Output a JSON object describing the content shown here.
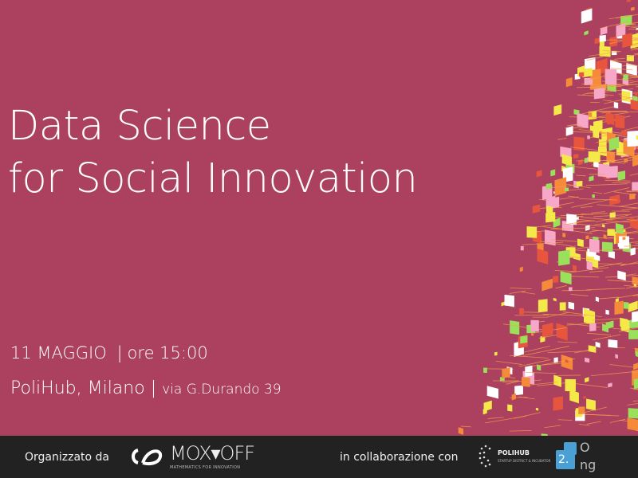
{
  "title": {
    "line1": "Data Science",
    "line2": "for Social Innovation"
  },
  "event": {
    "date": "11 MAGGIO",
    "time": "ore 15:00",
    "venue": "PoliHub, Milano",
    "address": "via G.Durando 39",
    "separator": "|"
  },
  "footer": {
    "organized_by": "Organizzato da",
    "organizer": {
      "name": "MOX▾OFF",
      "tagline": "MATHEMATICS FOR INNOVATION"
    },
    "collaboration": "in collaborazione con",
    "partner1": {
      "name": "POLIHUB",
      "tagline": "STARTUP DISTRICT & INCUBATOR"
    },
    "partner2": {
      "badge": "2.",
      "text_top": "O",
      "text_bottom": "ng"
    }
  },
  "colors": {
    "background": "#ab415e",
    "footer": "#222222",
    "accent_blue": "#4a9fd4",
    "particles": [
      "#f5e94a",
      "#f58a3a",
      "#9be05a",
      "#f7a8c8",
      "#ffffff",
      "#e8553e"
    ]
  }
}
